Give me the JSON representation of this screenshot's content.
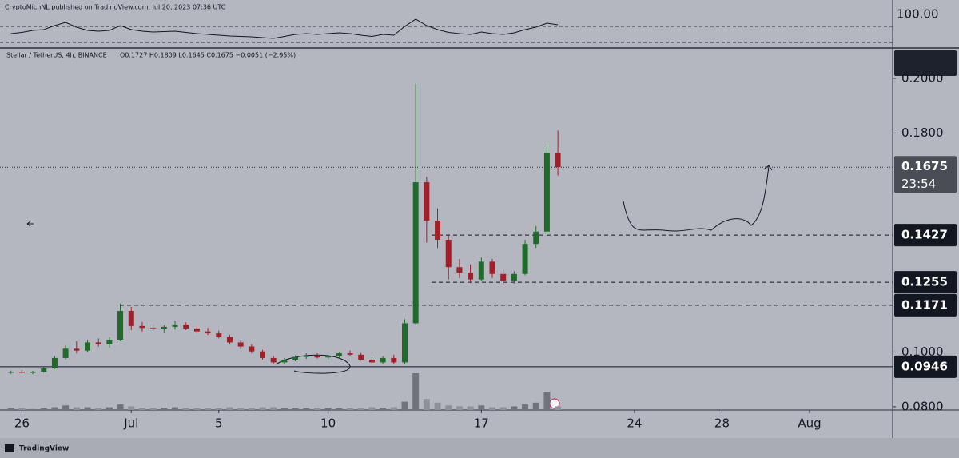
{
  "header": {
    "publisher": "CryptoMichNL published on TradingView.com, Jul 20, 2023 07:36 UTC",
    "footer": "TradingView"
  },
  "chart_data": {
    "type": "candlestick",
    "symbol": "Stellar / TetherUS, 4h, BINANCE",
    "ohlc_text": "O0.1727 H0.1809 L0.1645 C0.1675 −0.0051 (−2.95%)",
    "x": [
      -0.5,
      0,
      0.5,
      1,
      1.5,
      2,
      2.5,
      3,
      3.5,
      4,
      4.5,
      5,
      5.5,
      6,
      6.5,
      7,
      7.5,
      8,
      8.5,
      9,
      9.5,
      10,
      10.5,
      11,
      11.5,
      12,
      12.5,
      13,
      13.5,
      14,
      14.5,
      15,
      15.5,
      16,
      16.5,
      17,
      17.5,
      18,
      18.5,
      19,
      19.5,
      20,
      20.5,
      21,
      21.5,
      22,
      22.5,
      23,
      23.5,
      24,
      24.5
    ],
    "candles": [
      [
        0.0925,
        0.0932,
        0.092,
        0.0927
      ],
      [
        0.0927,
        0.0933,
        0.0921,
        0.0924
      ],
      [
        0.0924,
        0.0931,
        0.0919,
        0.0928
      ],
      [
        0.0928,
        0.0945,
        0.0925,
        0.094
      ],
      [
        0.094,
        0.0985,
        0.0938,
        0.0978
      ],
      [
        0.0978,
        0.1025,
        0.0972,
        0.1012
      ],
      [
        0.1012,
        0.104,
        0.0995,
        0.1005
      ],
      [
        0.1005,
        0.1045,
        0.1,
        0.1035
      ],
      [
        0.1035,
        0.105,
        0.102,
        0.1028
      ],
      [
        0.1028,
        0.1055,
        0.1015,
        0.1045
      ],
      [
        0.1045,
        0.1177,
        0.104,
        0.115
      ],
      [
        0.115,
        0.1165,
        0.108,
        0.1095
      ],
      [
        0.1095,
        0.111,
        0.1075,
        0.1088
      ],
      [
        0.1088,
        0.1102,
        0.1078,
        0.1085
      ],
      [
        0.1085,
        0.1098,
        0.1072,
        0.1092
      ],
      [
        0.1092,
        0.1112,
        0.1082,
        0.11
      ],
      [
        0.11,
        0.1108,
        0.108,
        0.1086
      ],
      [
        0.1086,
        0.1095,
        0.107,
        0.1075
      ],
      [
        0.1075,
        0.1088,
        0.1062,
        0.1068
      ],
      [
        0.1068,
        0.1078,
        0.105,
        0.1055
      ],
      [
        0.1055,
        0.1062,
        0.1028,
        0.1035
      ],
      [
        0.1035,
        0.1045,
        0.101,
        0.102
      ],
      [
        0.102,
        0.1028,
        0.0995,
        0.1002
      ],
      [
        0.1002,
        0.1008,
        0.0972,
        0.0978
      ],
      [
        0.0978,
        0.0985,
        0.0955,
        0.0962
      ],
      [
        0.0962,
        0.0978,
        0.0955,
        0.0972
      ],
      [
        0.0972,
        0.0988,
        0.0966,
        0.0982
      ],
      [
        0.0982,
        0.0995,
        0.0975,
        0.0985
      ],
      [
        0.0985,
        0.0995,
        0.0976,
        0.098
      ],
      [
        0.098,
        0.099,
        0.0972,
        0.0984
      ],
      [
        0.0984,
        0.1,
        0.0978,
        0.0995
      ],
      [
        0.0995,
        0.1005,
        0.0985,
        0.099
      ],
      [
        0.099,
        0.0996,
        0.0968,
        0.0972
      ],
      [
        0.0972,
        0.098,
        0.0955,
        0.0962
      ],
      [
        0.0962,
        0.0985,
        0.0955,
        0.0978
      ],
      [
        0.0978,
        0.099,
        0.0955,
        0.0962
      ],
      [
        0.0962,
        0.112,
        0.0955,
        0.1105
      ],
      [
        0.1105,
        0.198,
        0.11,
        0.162
      ],
      [
        0.162,
        0.164,
        0.14,
        0.148
      ],
      [
        0.148,
        0.1525,
        0.138,
        0.141
      ],
      [
        0.141,
        0.143,
        0.1265,
        0.131
      ],
      [
        0.131,
        0.134,
        0.127,
        0.129
      ],
      [
        0.129,
        0.132,
        0.1255,
        0.1265
      ],
      [
        0.1265,
        0.1345,
        0.126,
        0.133
      ],
      [
        0.133,
        0.134,
        0.127,
        0.1285
      ],
      [
        0.1285,
        0.13,
        0.1245,
        0.126
      ],
      [
        0.126,
        0.1295,
        0.125,
        0.1285
      ],
      [
        0.1285,
        0.141,
        0.128,
        0.1395
      ],
      [
        0.1395,
        0.146,
        0.138,
        0.144
      ],
      [
        0.144,
        0.176,
        0.143,
        0.1727
      ],
      [
        0.1727,
        0.1809,
        0.1645,
        0.1675
      ]
    ],
    "volume": [
      2,
      2,
      1,
      2,
      3,
      5,
      3,
      3,
      2,
      3,
      6,
      4,
      2,
      2,
      2,
      3,
      2,
      2,
      2,
      2,
      3,
      2,
      2,
      3,
      3,
      2,
      2,
      2,
      2,
      2,
      2,
      2,
      2,
      3,
      2,
      3,
      9,
      40,
      12,
      8,
      5,
      4,
      4,
      5,
      3,
      3,
      4,
      6,
      8,
      20,
      4
    ],
    "up_color": "#1f6b2a",
    "down_color": "#a0202a",
    "xlim": [
      -1.0,
      39.8
    ],
    "xticks": [
      {
        "value": 0,
        "label": "26"
      },
      {
        "value": 5,
        "label": "Jul"
      },
      {
        "value": 9,
        "label": "5"
      },
      {
        "value": 14,
        "label": "10"
      },
      {
        "value": 21,
        "label": "17"
      },
      {
        "value": 28,
        "label": "24"
      },
      {
        "value": 32,
        "label": "28"
      },
      {
        "value": 36,
        "label": "Aug"
      }
    ],
    "ylim": [
      0.0788,
      0.2105
    ],
    "yticks": [
      {
        "value": 0.2,
        "label": "0.2000"
      },
      {
        "value": 0.18,
        "label": "0.1800"
      },
      {
        "value": 0.1,
        "label": "0.1000"
      },
      {
        "value": 0.08,
        "label": "0.0800"
      }
    ],
    "levels": [
      {
        "value": 0.1427,
        "label": "0.1427"
      },
      {
        "value": 0.1255,
        "label": "0.1255"
      },
      {
        "value": 0.1171,
        "label": "0.1171"
      },
      {
        "value": 0.0946,
        "label": "0.0946"
      }
    ],
    "last_price": {
      "value": 0.1675,
      "label": "0.1675"
    },
    "countdown": "23:54",
    "indicator": {
      "ylim": [
        20,
        126
      ],
      "yticks": [
        {
          "value": 100,
          "label": "100.00"
        }
      ],
      "bands": [
        70,
        30
      ],
      "values": [
        52,
        55,
        60,
        62,
        72,
        80,
        68,
        60,
        58,
        60,
        72,
        62,
        58,
        56,
        57,
        58,
        55,
        52,
        50,
        48,
        46,
        45,
        44,
        42,
        40,
        45,
        50,
        52,
        50,
        52,
        54,
        52,
        48,
        45,
        50,
        48,
        70,
        88,
        72,
        62,
        55,
        52,
        50,
        56,
        52,
        50,
        54,
        62,
        68,
        78,
        74
      ]
    }
  }
}
